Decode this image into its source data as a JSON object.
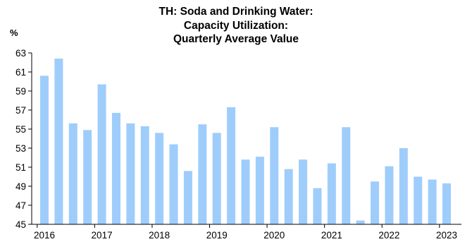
{
  "chart_data": {
    "type": "bar",
    "title_lines": [
      "TH: Soda and Drinking Water:",
      "Capacity Utilization:",
      "Quarterly Average Value"
    ],
    "ylabel": "%",
    "ylim": [
      45,
      63
    ],
    "yticks": [
      45,
      47,
      49,
      51,
      53,
      55,
      57,
      59,
      61,
      63
    ],
    "xtick_labels": [
      "2016",
      "2017",
      "2018",
      "2019",
      "2020",
      "2021",
      "2022",
      "2023"
    ],
    "bar_color": "#9fcdfb",
    "categories": [
      "2016 Q1",
      "2016 Q2",
      "2016 Q3",
      "2016 Q4",
      "2017 Q1",
      "2017 Q2",
      "2017 Q3",
      "2017 Q4",
      "2018 Q1",
      "2018 Q2",
      "2018 Q3",
      "2018 Q4",
      "2019 Q1",
      "2019 Q2",
      "2019 Q3",
      "2019 Q4",
      "2020 Q1",
      "2020 Q2",
      "2020 Q3",
      "2020 Q4",
      "2021 Q1",
      "2021 Q2",
      "2021 Q3",
      "2021 Q4",
      "2022 Q1",
      "2022 Q2",
      "2022 Q3",
      "2022 Q4",
      "2023 Q1"
    ],
    "values": [
      60.6,
      62.4,
      55.6,
      54.9,
      59.7,
      56.7,
      55.6,
      55.3,
      54.6,
      53.4,
      50.6,
      55.5,
      54.6,
      57.3,
      51.8,
      52.1,
      55.2,
      50.8,
      51.8,
      48.8,
      51.4,
      55.2,
      45.4,
      49.5,
      51.1,
      53.0,
      50.0,
      49.7,
      49.3
    ]
  }
}
